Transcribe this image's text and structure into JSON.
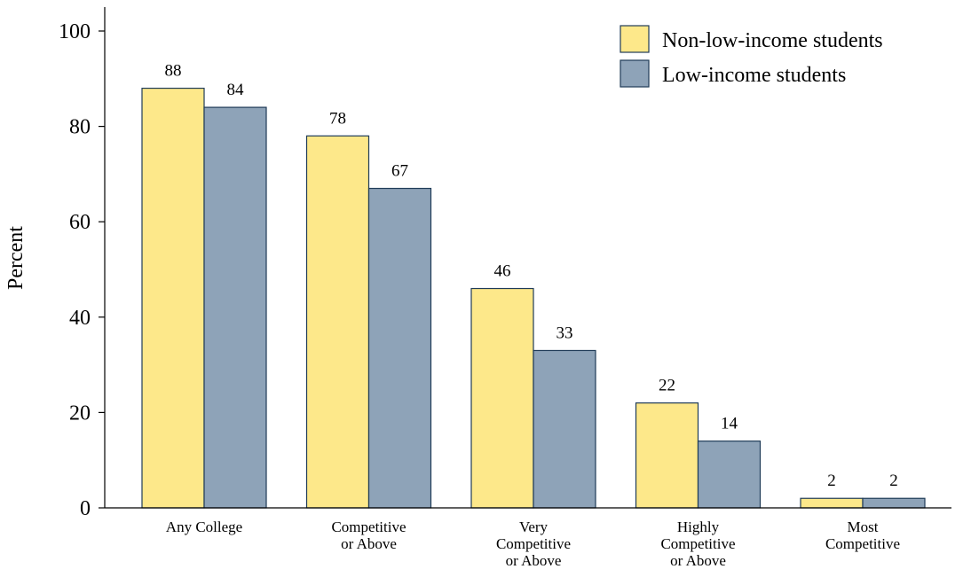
{
  "chart_data": {
    "type": "bar",
    "ylabel": "Percent",
    "ylim": [
      0,
      100
    ],
    "yticks": [
      0,
      20,
      40,
      60,
      80,
      100
    ],
    "grid": false,
    "legend_position": "top-right",
    "categories": [
      [
        "Any College"
      ],
      [
        "Competitive",
        "or Above"
      ],
      [
        "Very",
        "Competitive",
        "or Above"
      ],
      [
        "Highly",
        "Competitive",
        "or Above"
      ],
      [
        "Most",
        "Competitive"
      ]
    ],
    "series": [
      {
        "name": "Non-low-income students",
        "color": "#fde88a",
        "values": [
          88,
          78,
          46,
          22,
          2
        ]
      },
      {
        "name": "Low-income students",
        "color": "#8ea3b8",
        "values": [
          84,
          67,
          33,
          14,
          2
        ]
      }
    ]
  }
}
